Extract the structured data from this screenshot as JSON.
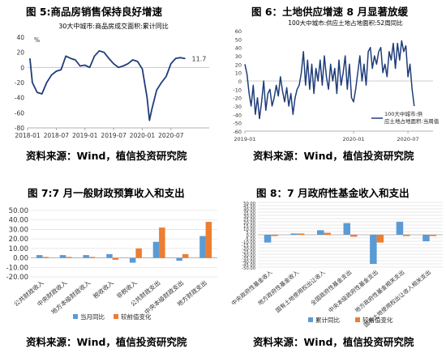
{
  "figures": [
    {
      "title": "图 5:商品房销售保持良好增速",
      "source": "资料来源：Wind，植信投资研究院"
    },
    {
      "title": "图  6：土地供应增速 8 月显著放缓",
      "source": "资料来源：Wind，植信投资研究院"
    },
    {
      "title": "图 7:7 月一般财政预算收入和支出",
      "source": "资料来源：Wind，植信投资研究院"
    },
    {
      "title": "图  8：7 月政府性基金收入和支出",
      "source": "资料来源：Wind，植信投资研究院"
    }
  ],
  "chart_data": [
    {
      "type": "line",
      "title": "30大中城市:商品房成交面积:累计同比",
      "ylabel": "%",
      "ylim": [
        -80,
        40
      ],
      "yticks": [
        -80,
        -60,
        -40,
        -20,
        0,
        20,
        40
      ],
      "xticks": [
        {
          "label": "2018-01",
          "t": 0
        },
        {
          "label": "2018-07",
          "t": 6
        },
        {
          "label": "2019-01",
          "t": 12
        },
        {
          "label": "2019-07",
          "t": 18
        },
        {
          "label": "2020-01",
          "t": 24
        },
        {
          "label": "2020-07",
          "t": 30
        }
      ],
      "xlim": [
        0,
        38
      ],
      "end_label": "11.7",
      "color": "#1f3d7a",
      "x": [
        0.5,
        1,
        2,
        3,
        4,
        5,
        6,
        7,
        8,
        9,
        10,
        11,
        12,
        13,
        14,
        15,
        16,
        17,
        18,
        19,
        20,
        21,
        22,
        23,
        24,
        25,
        25.5,
        26,
        27,
        28,
        29,
        30,
        31,
        32,
        33
      ],
      "values": [
        12,
        -20,
        -33,
        -35,
        -20,
        -10,
        -5,
        -3,
        15,
        12,
        10,
        2,
        3,
        0,
        15,
        22,
        20,
        12,
        5,
        0,
        2,
        5,
        10,
        8,
        -2,
        -40,
        -70,
        -55,
        -30,
        -20,
        -12,
        5,
        12,
        13,
        11.7
      ]
    },
    {
      "type": "line",
      "title": "100大中城市:供应土地占地面积:52周同比",
      "ylim": [
        -60,
        60
      ],
      "yticks": [
        -60,
        -50,
        -40,
        -30,
        -20,
        -10,
        0,
        10,
        20,
        30,
        40,
        50,
        60
      ],
      "xticks": [
        {
          "label": "2019-01",
          "t": 0
        },
        {
          "label": "2020-01",
          "t": 52
        },
        {
          "label": "2020-07",
          "t": 78
        }
      ],
      "xlim": [
        0,
        90
      ],
      "legend": "100大中城市:供应土地占地面积:当周值",
      "legend_position": "bottom-right",
      "color": "#1f3d7a",
      "x": [
        0,
        1,
        2,
        3,
        4,
        5,
        6,
        7,
        8,
        9,
        10,
        11,
        12,
        13,
        14,
        15,
        16,
        17,
        18,
        19,
        20,
        21,
        22,
        23,
        24,
        25,
        26,
        27,
        28,
        29,
        30,
        31,
        32,
        33,
        34,
        35,
        36,
        37,
        38,
        39,
        40,
        41,
        42,
        43,
        44,
        45,
        46,
        47,
        48,
        49,
        50,
        51,
        52,
        53,
        54,
        55,
        56,
        57,
        58,
        59,
        60,
        61,
        62,
        63,
        64,
        65,
        66,
        67,
        68,
        69,
        70,
        71,
        72,
        73,
        74,
        75,
        76,
        77,
        78,
        79,
        80,
        81
      ],
      "values": [
        20,
        8,
        -15,
        -30,
        -5,
        -40,
        -20,
        -45,
        -25,
        0,
        -35,
        -15,
        -10,
        -30,
        -20,
        -5,
        -18,
        5,
        -12,
        -25,
        -8,
        -30,
        -15,
        -40,
        -20,
        -10,
        -5,
        10,
        35,
        -5,
        25,
        -10,
        20,
        -15,
        15,
        0,
        25,
        -5,
        30,
        5,
        -10,
        20,
        0,
        15,
        -15,
        25,
        -5,
        10,
        30,
        -10,
        20,
        -20,
        -25,
        -10,
        10,
        30,
        0,
        20,
        -5,
        35,
        40,
        15,
        30,
        20,
        35,
        40,
        10,
        20,
        5,
        35,
        25,
        45,
        15,
        45,
        25,
        48,
        35,
        42,
        5,
        20,
        -10,
        -30
      ]
    },
    {
      "type": "bar",
      "ylim": [
        -20,
        50
      ],
      "yticks": [
        -20,
        -10,
        0,
        10,
        20,
        30,
        40,
        50
      ],
      "tick_labels": [
        "-20.00",
        "-10.00",
        "0.00",
        "10.00",
        "20.00",
        "30.00",
        "40.00",
        "50.00"
      ],
      "categories": [
        "公共财政收入",
        "中央财政收入",
        "地方本级财政收入",
        "税收收入",
        "非税收入",
        "公共财政支出",
        "中央本级财政支出",
        "地方财政支出"
      ],
      "series": [
        {
          "name": "当月同比",
          "color": "#5b9bd5",
          "values": [
            3,
            3,
            3,
            4,
            -5,
            17,
            -3,
            23
          ]
        },
        {
          "name": "较前值变化",
          "color": "#ed7d31",
          "values": [
            1,
            1,
            1,
            -2,
            10,
            32,
            4,
            38
          ]
        }
      ],
      "legend_position": "bottom"
    },
    {
      "type": "bar",
      "ylim": [
        -50,
        50
      ],
      "yticks": [
        -50,
        -45,
        -40,
        -35,
        -30,
        -25,
        -20,
        -15,
        -10,
        -5,
        0,
        5,
        10,
        15,
        20,
        25,
        30,
        35,
        40,
        45,
        50
      ],
      "tick_labels": [
        "-50.00",
        "-45.00",
        "-40.00",
        "-35.00",
        "-30.00",
        "-25.00",
        "-20.00",
        "-15.00",
        "-10.00",
        "-5.00",
        "0.00",
        "5.00",
        "10.00",
        "15.00",
        "20.00",
        "25.00",
        "30.00",
        "35.00",
        "40.00",
        "45.00",
        "50.00"
      ],
      "categories": [
        "中央政府性基金收入",
        "地方政府性基金收入",
        "国有土地使用权出让收入",
        "全国政府性基金支出",
        "中央本级政府性基金支出",
        "地方政府性基金相关支出",
        "国有土地使用权出让收入相关支出"
      ],
      "series": [
        {
          "name": "累计同比",
          "color": "#5b9bd5",
          "values": [
            -12,
            2,
            7,
            18,
            -45,
            20,
            -10
          ]
        },
        {
          "name": "较前值变化",
          "color": "#ed7d31",
          "values": [
            -2,
            2,
            3,
            -3,
            -12,
            -2,
            -2
          ]
        }
      ],
      "legend_position": "bottom"
    }
  ]
}
